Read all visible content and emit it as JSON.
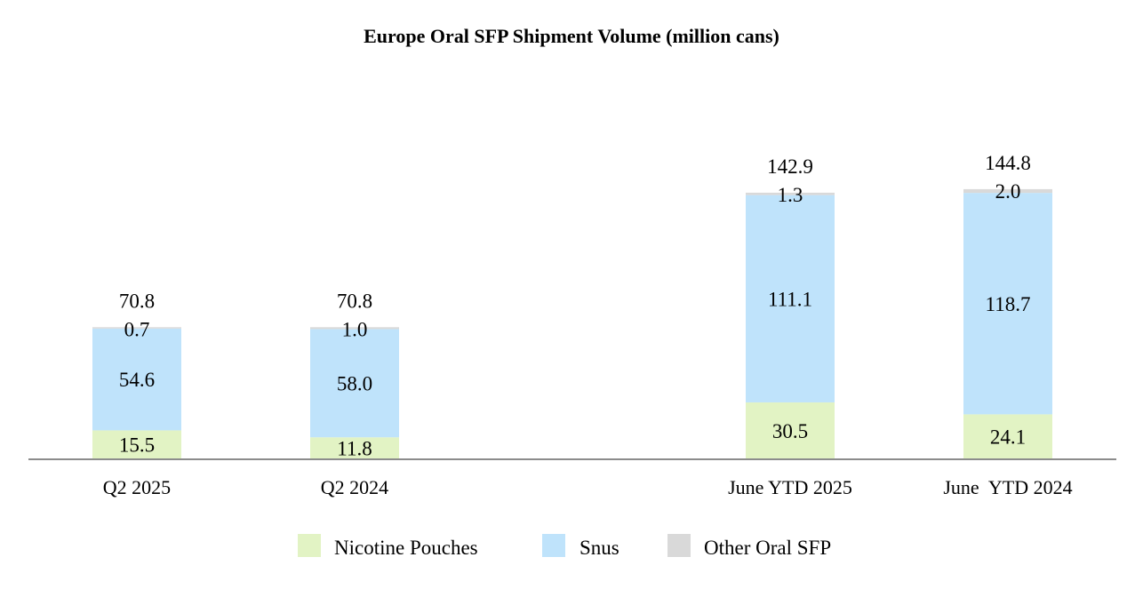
{
  "chart_data": {
    "type": "bar",
    "stacked": true,
    "title": "Europe Oral SFP Shipment Volume (million cans)",
    "xlabel": "",
    "ylabel": "",
    "grid": false,
    "legend_position": "bottom",
    "categories": [
      "Q2 2025",
      "Q2 2024",
      "June YTD 2025",
      "June  YTD 2024"
    ],
    "series": [
      {
        "name": "Nicotine Pouches",
        "color": "#e2f3c4",
        "values": [
          15.5,
          11.8,
          30.5,
          24.1
        ],
        "labels": [
          "15.5",
          "11.8",
          "30.5",
          "24.1"
        ]
      },
      {
        "name": "Snus",
        "color": "#bfe3fb",
        "values": [
          54.6,
          58.0,
          111.1,
          118.7
        ],
        "labels": [
          "54.6",
          "58.0",
          "111.1",
          "118.7"
        ]
      },
      {
        "name": "Other Oral SFP",
        "color": "#d9d9d9",
        "values": [
          0.7,
          1.0,
          1.3,
          2.0
        ],
        "labels": [
          "0.7",
          "1.0",
          "1.3",
          "2.0"
        ]
      }
    ],
    "totals": [
      70.8,
      70.8,
      142.9,
      144.8
    ],
    "total_labels": [
      "70.8",
      "70.8",
      "142.9",
      "144.8"
    ]
  }
}
